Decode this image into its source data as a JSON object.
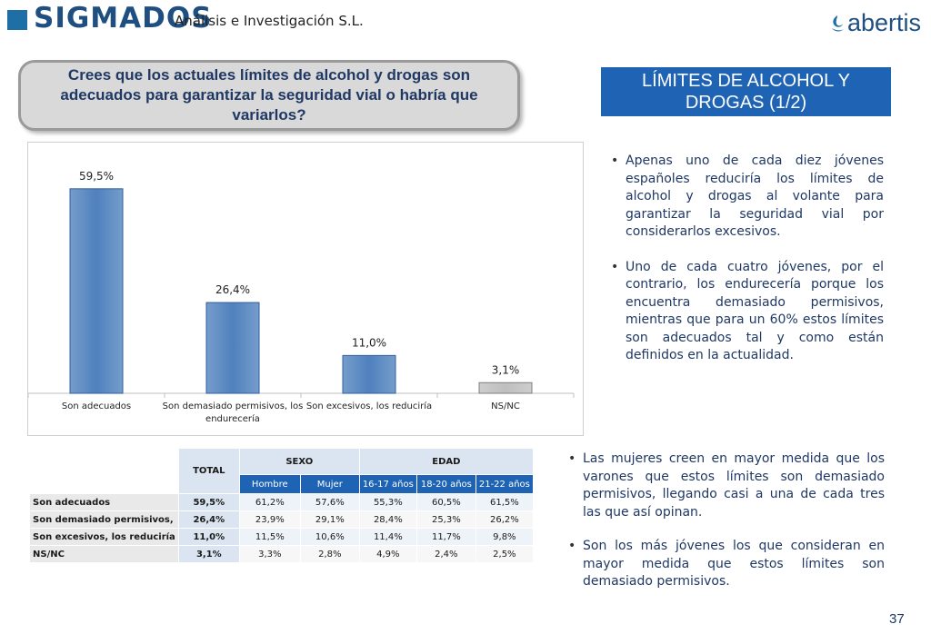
{
  "header": {
    "logo": "SIGMADOS",
    "subtitle": "Análisis e Investigación S.L.",
    "partner_logo": "abertis"
  },
  "question": "Crees que los actuales límites de alcohol y drogas son adecuados para garantizar la seguridad vial o habría que variarlos?",
  "slide_title": "LÍMITES DE ALCOHOL Y DROGAS (1/2)",
  "chart_data": {
    "type": "bar",
    "categories": [
      "Son adecuados",
      "Son demasiado  permisivos, los endurecería",
      "Son excesivos, los reduciría",
      "NS/NC"
    ],
    "values": [
      59.5,
      26.4,
      11.0,
      3.1
    ],
    "value_labels": [
      "59,5%",
      "26,4%",
      "11,0%",
      "3,1%"
    ],
    "colors": [
      "#4f81bd",
      "#4f81bd",
      "#4f81bd",
      "#bfbfbf"
    ],
    "ylim": [
      0,
      65
    ],
    "title": "",
    "xlabel": "",
    "ylabel": ""
  },
  "bullets_top": [
    "Apenas uno de cada diez jóvenes españoles reduciría los límites de alcohol y drogas al volante para garantizar la seguridad vial por considerarlos excesivos.",
    "Uno de cada cuatro jóvenes, por el contrario, los endurecería porque los encuentra demasiado permisivos, mientras que para un 60% estos límites son adecuados tal y como están definidos en la actualidad."
  ],
  "bullets_bottom": [
    "Las mujeres creen en mayor medida que los varones que estos límites son demasiado permisivos, llegando casi a una de cada tres las que así opinan.",
    "Son los más jóvenes los que consideran en mayor medida que estos límites son demasiado permisivos."
  ],
  "table": {
    "total_header": "TOTAL",
    "group_headers": [
      "SEXO",
      "EDAD"
    ],
    "sub_headers": [
      "Hombre",
      "Mujer",
      "16-17 años",
      "18-20 años",
      "21-22 años"
    ],
    "rows": [
      {
        "label": "Son adecuados",
        "total": "59,5%",
        "values": [
          "61,2%",
          "57,6%",
          "55,3%",
          "60,5%",
          "61,5%"
        ]
      },
      {
        "label": "Son demasiado permisivos,",
        "total": "26,4%",
        "values": [
          "23,9%",
          "29,1%",
          "28,4%",
          "25,3%",
          "26,2%"
        ]
      },
      {
        "label": "Son excesivos, los reduciría",
        "total": "11,0%",
        "values": [
          "11,5%",
          "10,6%",
          "11,4%",
          "11,7%",
          "9,8%"
        ]
      },
      {
        "label": "NS/NC",
        "total": "3,1%",
        "values": [
          "3,3%",
          "2,8%",
          "4,9%",
          "2,4%",
          "2,5%"
        ]
      }
    ]
  },
  "page_number": "37"
}
